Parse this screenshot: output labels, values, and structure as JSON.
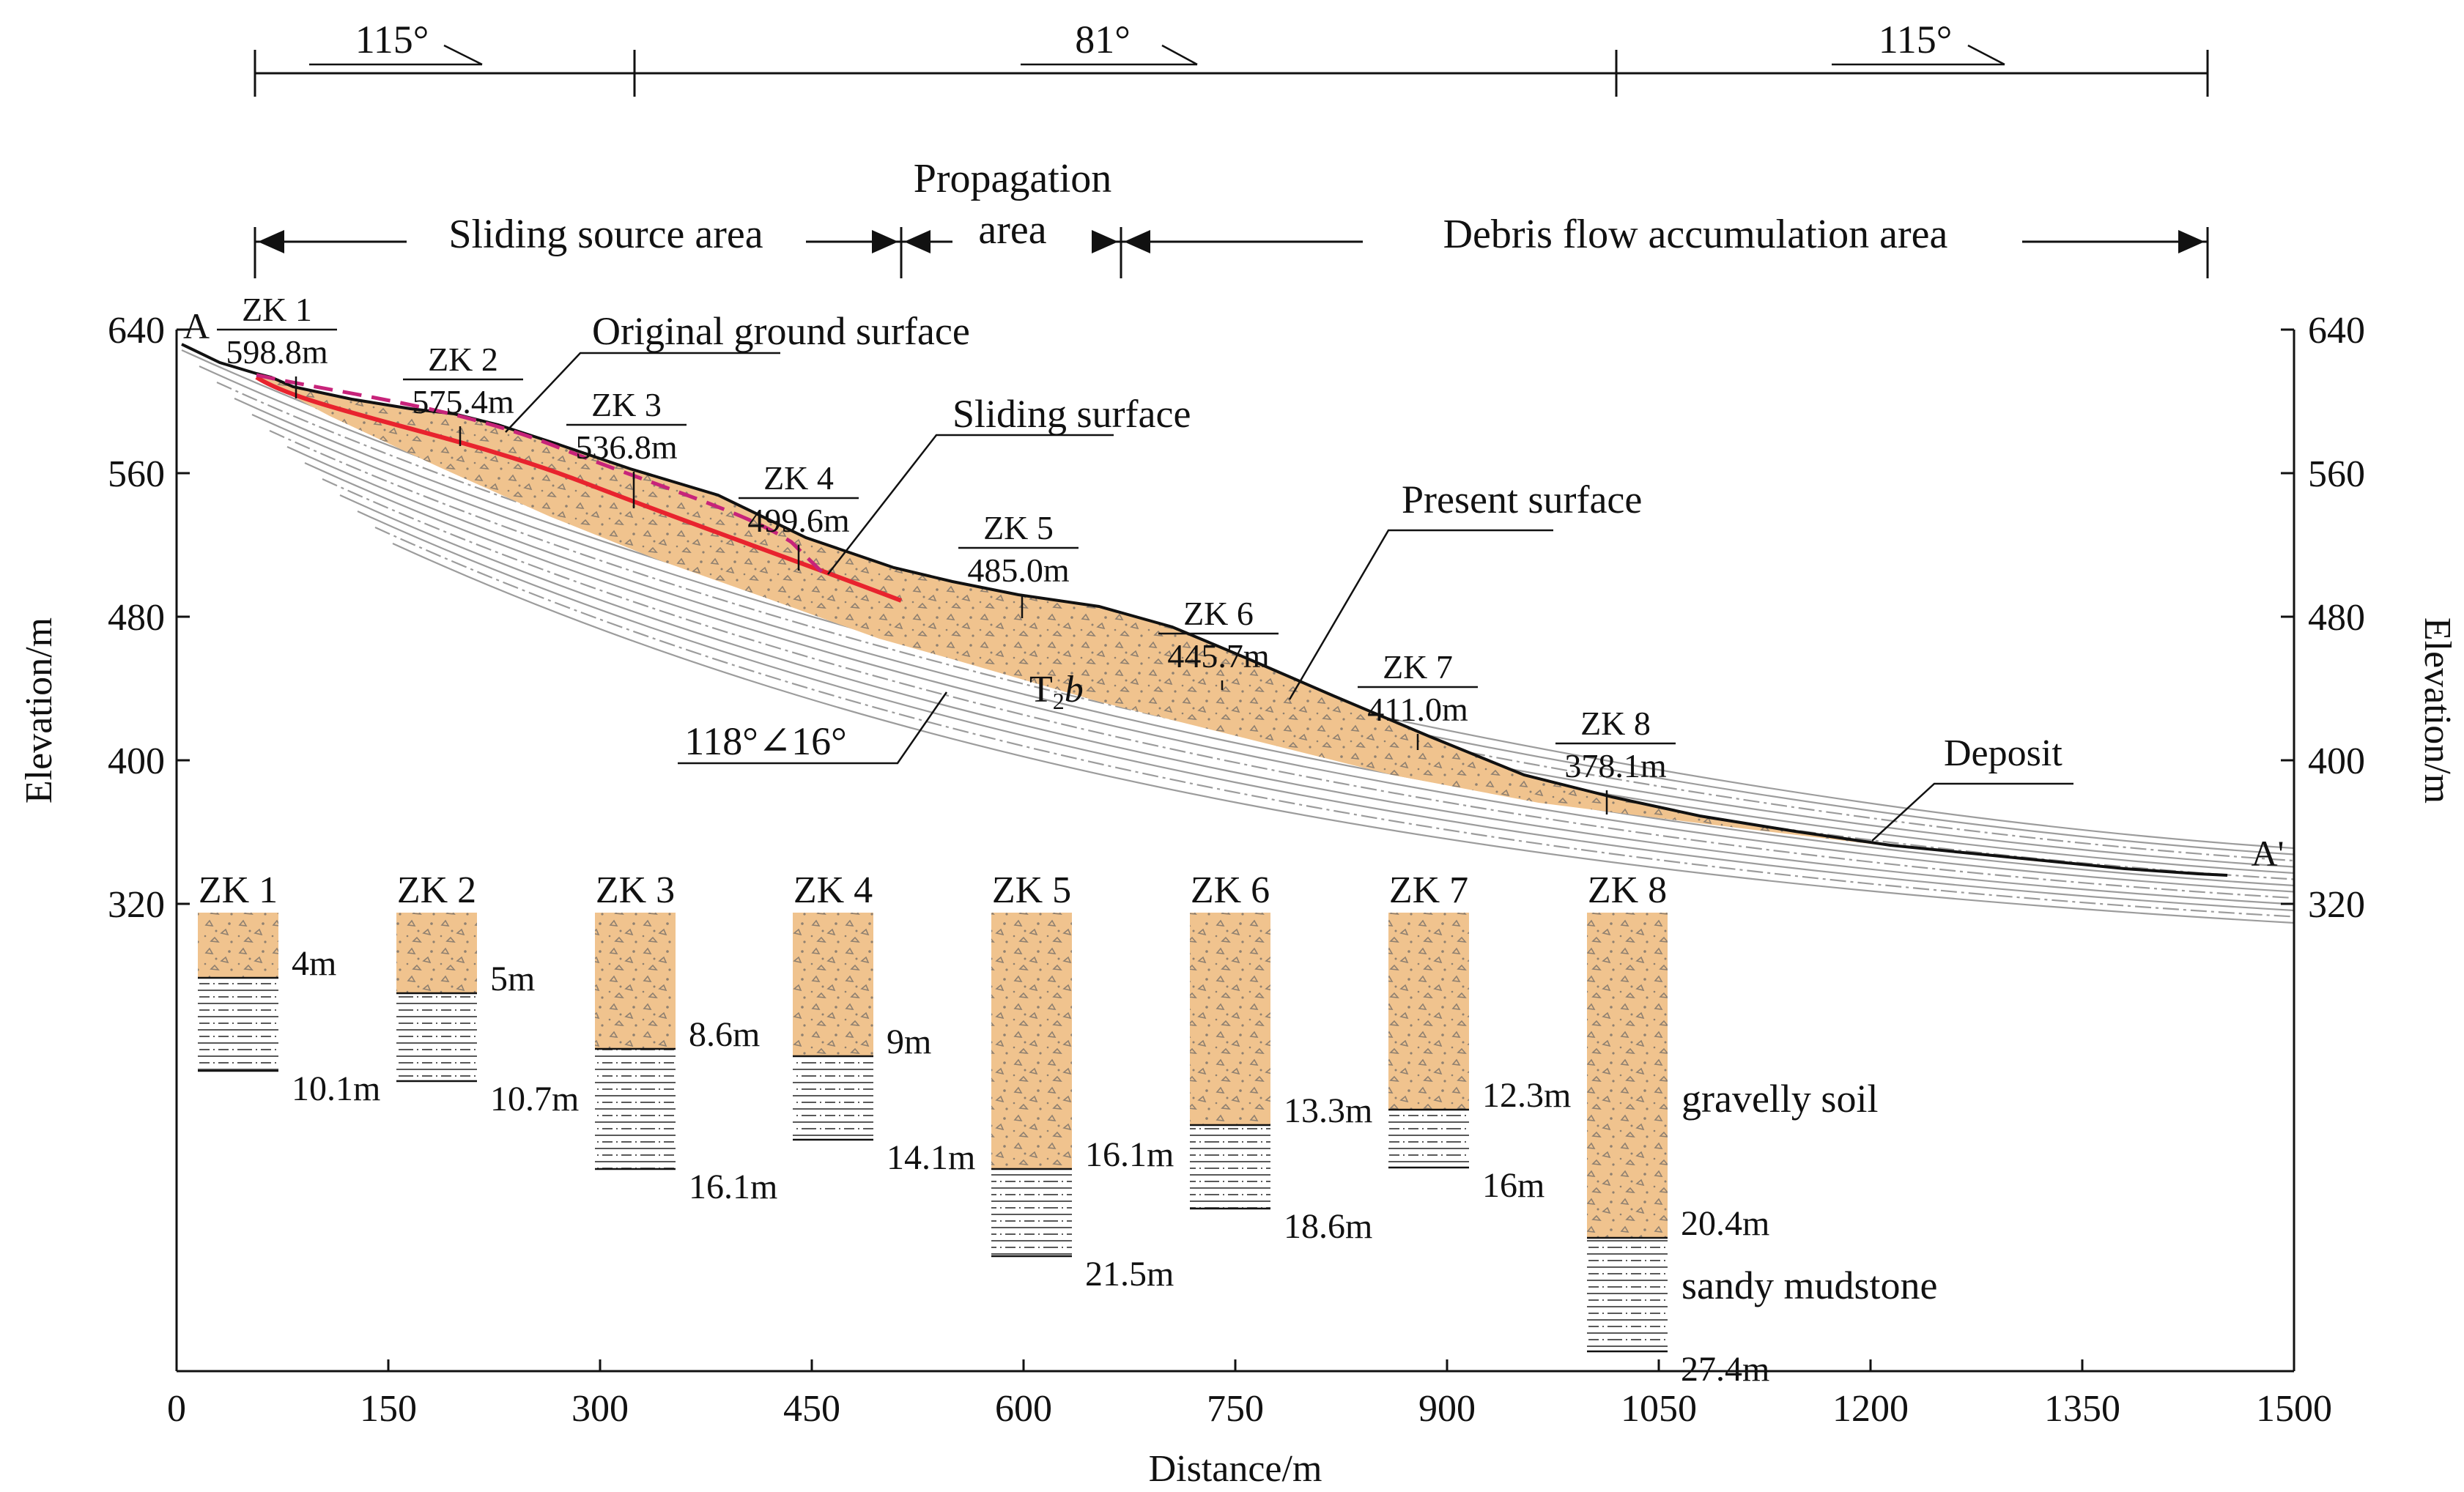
{
  "colors": {
    "deposit": "#f0c38e",
    "slide": "#e8232e",
    "original": "#c7237a",
    "bedding": "#999999",
    "axis": "#111111",
    "pebble": "#9a8a7a"
  },
  "axes": {
    "x_label": "Distance/m",
    "y_label_left": "Elevation/m",
    "y_label_right": "Elevation/m",
    "x_ticks": [
      "0",
      "150",
      "300",
      "450",
      "600",
      "750",
      "900",
      "1050",
      "1200",
      "1350",
      "1500"
    ],
    "y_ticks": [
      "640",
      "560",
      "480",
      "400",
      "320"
    ]
  },
  "dip_bar": [
    "115°",
    "81°",
    "115°"
  ],
  "zones": {
    "source": "Sliding source area",
    "propagation_line1": "Propagation",
    "propagation_line2": "area",
    "accumulation": "Debris flow accumulation area"
  },
  "labels": {
    "A": "A",
    "A_prime": "A'",
    "original_surface": "Original ground surface",
    "sliding_surface": "Sliding surface",
    "present_surface": "Present surface",
    "deposit": "Deposit",
    "formation_T": "T",
    "formation_sub": "2",
    "formation_b": "b",
    "bedding_attitude": "118°∠16°"
  },
  "boreholes_profile": [
    {
      "name": "ZK 1",
      "elev": "598.8m"
    },
    {
      "name": "ZK 2",
      "elev": "575.4m"
    },
    {
      "name": "ZK 3",
      "elev": "536.8m"
    },
    {
      "name": "ZK 4",
      "elev": "499.6m"
    },
    {
      "name": "ZK 5",
      "elev": "485.0m"
    },
    {
      "name": "ZK 6",
      "elev": "445.7m"
    },
    {
      "name": "ZK 7",
      "elev": "411.0m"
    },
    {
      "name": "ZK 8",
      "elev": "378.1m"
    }
  ],
  "columns": [
    {
      "name": "ZK 1",
      "soil": "4m",
      "total": "10.1m"
    },
    {
      "name": "ZK 2",
      "soil": "5m",
      "total": "10.7m"
    },
    {
      "name": "ZK 3",
      "soil": "8.6m",
      "total": "16.1m"
    },
    {
      "name": "ZK 4",
      "soil": "9m",
      "total": "14.1m"
    },
    {
      "name": "ZK 5",
      "soil": "16.1m",
      "total": "21.5m"
    },
    {
      "name": "ZK 6",
      "soil": "13.3m",
      "total": "18.6m"
    },
    {
      "name": "ZK 7",
      "soil": "12.3m",
      "total": "16m"
    },
    {
      "name": "ZK 8",
      "soil": "20.4m",
      "total": "27.4m"
    }
  ],
  "legend": {
    "gravelly": "gravelly soil",
    "mudstone": "sandy mudstone"
  }
}
